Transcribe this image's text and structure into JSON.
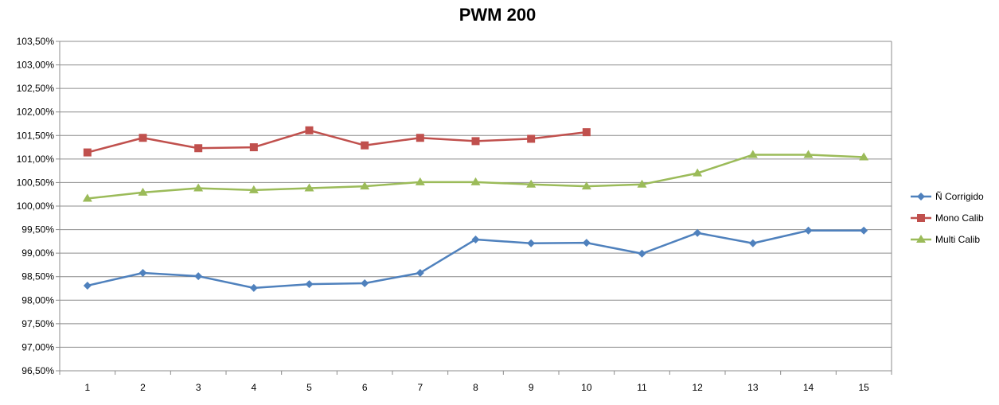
{
  "chart_data": {
    "type": "line",
    "title": "PWM 200",
    "xlabel": "",
    "ylabel": "",
    "categories": [
      "1",
      "2",
      "3",
      "4",
      "5",
      "6",
      "7",
      "8",
      "9",
      "10",
      "11",
      "12",
      "13",
      "14",
      "15"
    ],
    "ylim": [
      96.5,
      103.5
    ],
    "y_step": 0.5,
    "y_tick_labels": [
      "96,50%",
      "97,00%",
      "97,50%",
      "98,00%",
      "98,50%",
      "99,00%",
      "99,50%",
      "100,00%",
      "100,50%",
      "101,00%",
      "101,50%",
      "102,00%",
      "102,50%",
      "103,00%",
      "103,50%"
    ],
    "grid": true,
    "legend_position": "right",
    "series": [
      {
        "name": "Ñ Corrigido",
        "color": "#4F81BD",
        "marker": "diamond",
        "values": [
          98.31,
          98.58,
          98.51,
          98.26,
          98.34,
          98.36,
          98.58,
          99.29,
          99.21,
          99.22,
          98.99,
          99.43,
          99.21,
          99.48,
          99.48
        ]
      },
      {
        "name": "Mono Calib",
        "color": "#C0504D",
        "marker": "square",
        "values": [
          101.14,
          101.45,
          101.23,
          101.25,
          101.61,
          101.29,
          101.45,
          101.38,
          101.43,
          101.57,
          null,
          null,
          null,
          null,
          null
        ]
      },
      {
        "name": "Multi Calib",
        "color": "#9BBB59",
        "marker": "triangle",
        "values": [
          100.16,
          100.29,
          100.38,
          100.34,
          100.38,
          100.42,
          100.51,
          100.51,
          100.46,
          100.42,
          100.46,
          100.7,
          101.09,
          101.09,
          101.04
        ]
      }
    ]
  }
}
